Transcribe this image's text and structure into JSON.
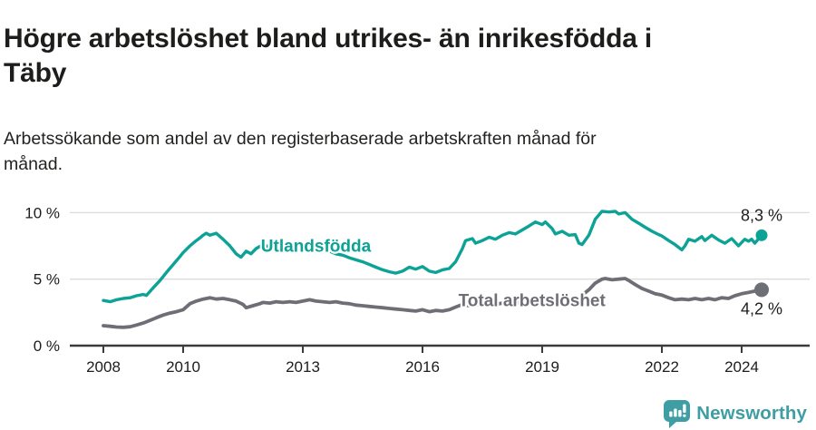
{
  "header": {
    "title_lines": [
      "Högre arbetslöshet bland utrikes- än inrikesfödda i",
      "Täby"
    ],
    "subtitle_lines": [
      "Arbetssökande som andel av den registerbaserade arbetskraften månad för",
      "månad."
    ]
  },
  "chart_data": {
    "type": "line",
    "title": "Högre arbetslöshet bland utrikes- än inrikesfödda i Täby",
    "subtitle": "Arbetssökande som andel av den registerbaserade arbetskraften månad för månad.",
    "grid": "horizontal-only",
    "legend_position": "inline-labels",
    "x_axis": {
      "ticks": [
        2008,
        2010,
        2013,
        2016,
        2019,
        2022,
        2024
      ],
      "tick_labels": [
        "2008",
        "2010",
        "2013",
        "2016",
        "2019",
        "2022",
        "2024"
      ],
      "range_years": [
        2008.0,
        2024.5
      ]
    },
    "y_axis": {
      "ticks": [
        0,
        5,
        10
      ],
      "tick_labels": [
        "0 %",
        "5 %",
        "10 %"
      ],
      "range": [
        0,
        11.7
      ],
      "unit": "%"
    },
    "series": [
      {
        "name": "Utlandsfödda",
        "color": "#0da296",
        "end_value": 8.3,
        "end_label": "8,3 %",
        "label_pos": {
          "year": 2011.95,
          "value": 7.55
        },
        "points": [
          [
            2008.0,
            3.4
          ],
          [
            2008.17,
            3.3
          ],
          [
            2008.33,
            3.45
          ],
          [
            2008.5,
            3.55
          ],
          [
            2008.67,
            3.6
          ],
          [
            2008.83,
            3.75
          ],
          [
            2009.0,
            3.85
          ],
          [
            2009.08,
            3.78
          ],
          [
            2009.25,
            4.35
          ],
          [
            2009.42,
            4.9
          ],
          [
            2009.58,
            5.5
          ],
          [
            2009.75,
            6.1
          ],
          [
            2009.92,
            6.7
          ],
          [
            2010.0,
            7.0
          ],
          [
            2010.17,
            7.5
          ],
          [
            2010.33,
            7.9
          ],
          [
            2010.42,
            8.1
          ],
          [
            2010.5,
            8.3
          ],
          [
            2010.58,
            8.45
          ],
          [
            2010.67,
            8.3
          ],
          [
            2010.83,
            8.45
          ],
          [
            2011.0,
            8.0
          ],
          [
            2011.17,
            7.5
          ],
          [
            2011.33,
            6.9
          ],
          [
            2011.45,
            6.65
          ],
          [
            2011.58,
            7.1
          ],
          [
            2011.7,
            6.9
          ],
          [
            2011.83,
            7.3
          ],
          [
            2012.0,
            7.6
          ],
          [
            2012.17,
            7.4
          ],
          [
            2012.33,
            7.6
          ],
          [
            2012.5,
            7.45
          ],
          [
            2012.67,
            7.6
          ],
          [
            2012.83,
            7.5
          ],
          [
            2013.0,
            7.55
          ],
          [
            2013.17,
            7.35
          ],
          [
            2013.33,
            7.45
          ],
          [
            2013.5,
            7.2
          ],
          [
            2013.67,
            7.1
          ],
          [
            2013.83,
            6.9
          ],
          [
            2014.0,
            6.8
          ],
          [
            2014.17,
            6.6
          ],
          [
            2014.33,
            6.45
          ],
          [
            2014.5,
            6.3
          ],
          [
            2014.67,
            6.1
          ],
          [
            2014.83,
            5.9
          ],
          [
            2015.0,
            5.7
          ],
          [
            2015.17,
            5.55
          ],
          [
            2015.33,
            5.45
          ],
          [
            2015.5,
            5.6
          ],
          [
            2015.67,
            5.9
          ],
          [
            2015.83,
            5.75
          ],
          [
            2016.0,
            5.95
          ],
          [
            2016.17,
            5.6
          ],
          [
            2016.33,
            5.5
          ],
          [
            2016.5,
            5.7
          ],
          [
            2016.67,
            5.8
          ],
          [
            2016.83,
            6.3
          ],
          [
            2017.0,
            7.3
          ],
          [
            2017.08,
            7.9
          ],
          [
            2017.25,
            8.05
          ],
          [
            2017.33,
            7.7
          ],
          [
            2017.5,
            7.9
          ],
          [
            2017.67,
            8.15
          ],
          [
            2017.83,
            8.0
          ],
          [
            2018.0,
            8.3
          ],
          [
            2018.17,
            8.5
          ],
          [
            2018.33,
            8.4
          ],
          [
            2018.5,
            8.7
          ],
          [
            2018.67,
            9.0
          ],
          [
            2018.83,
            9.3
          ],
          [
            2019.0,
            9.1
          ],
          [
            2019.08,
            9.3
          ],
          [
            2019.25,
            8.8
          ],
          [
            2019.33,
            8.4
          ],
          [
            2019.5,
            8.6
          ],
          [
            2019.67,
            8.3
          ],
          [
            2019.83,
            8.35
          ],
          [
            2019.92,
            7.7
          ],
          [
            2020.0,
            7.6
          ],
          [
            2020.17,
            8.3
          ],
          [
            2020.33,
            9.5
          ],
          [
            2020.5,
            10.1
          ],
          [
            2020.67,
            10.05
          ],
          [
            2020.83,
            10.1
          ],
          [
            2020.92,
            9.9
          ],
          [
            2021.08,
            10.0
          ],
          [
            2021.25,
            9.5
          ],
          [
            2021.42,
            9.2
          ],
          [
            2021.58,
            8.9
          ],
          [
            2021.75,
            8.6
          ],
          [
            2021.92,
            8.35
          ],
          [
            2022.0,
            8.25
          ],
          [
            2022.17,
            7.9
          ],
          [
            2022.33,
            7.6
          ],
          [
            2022.5,
            7.2
          ],
          [
            2022.58,
            7.5
          ],
          [
            2022.67,
            8.0
          ],
          [
            2022.83,
            7.85
          ],
          [
            2023.0,
            8.2
          ],
          [
            2023.08,
            7.9
          ],
          [
            2023.25,
            8.3
          ],
          [
            2023.42,
            7.95
          ],
          [
            2023.58,
            7.7
          ],
          [
            2023.75,
            8.05
          ],
          [
            2023.92,
            7.5
          ],
          [
            2024.08,
            8.0
          ],
          [
            2024.17,
            7.85
          ],
          [
            2024.25,
            8.0
          ],
          [
            2024.33,
            7.7
          ],
          [
            2024.5,
            8.3
          ]
        ]
      },
      {
        "name": "Total arbetslöshet",
        "color": "#6e6e76",
        "end_value": 4.2,
        "end_label": "4,2 %",
        "label_pos": {
          "year": 2016.9,
          "value": 3.45
        },
        "points": [
          [
            2008.0,
            1.5
          ],
          [
            2008.17,
            1.45
          ],
          [
            2008.33,
            1.4
          ],
          [
            2008.5,
            1.38
          ],
          [
            2008.67,
            1.42
          ],
          [
            2008.83,
            1.55
          ],
          [
            2009.0,
            1.7
          ],
          [
            2009.17,
            1.9
          ],
          [
            2009.33,
            2.1
          ],
          [
            2009.5,
            2.3
          ],
          [
            2009.67,
            2.45
          ],
          [
            2009.83,
            2.55
          ],
          [
            2010.0,
            2.7
          ],
          [
            2010.17,
            3.15
          ],
          [
            2010.33,
            3.35
          ],
          [
            2010.5,
            3.5
          ],
          [
            2010.67,
            3.6
          ],
          [
            2010.83,
            3.5
          ],
          [
            2011.0,
            3.55
          ],
          [
            2011.17,
            3.45
          ],
          [
            2011.33,
            3.35
          ],
          [
            2011.5,
            3.1
          ],
          [
            2011.58,
            2.85
          ],
          [
            2011.75,
            3.0
          ],
          [
            2011.92,
            3.15
          ],
          [
            2012.0,
            3.25
          ],
          [
            2012.17,
            3.2
          ],
          [
            2012.33,
            3.3
          ],
          [
            2012.5,
            3.25
          ],
          [
            2012.67,
            3.3
          ],
          [
            2012.83,
            3.25
          ],
          [
            2013.0,
            3.35
          ],
          [
            2013.17,
            3.45
          ],
          [
            2013.33,
            3.35
          ],
          [
            2013.5,
            3.3
          ],
          [
            2013.67,
            3.25
          ],
          [
            2013.83,
            3.3
          ],
          [
            2014.0,
            3.2
          ],
          [
            2014.17,
            3.15
          ],
          [
            2014.33,
            3.05
          ],
          [
            2014.5,
            3.0
          ],
          [
            2014.67,
            2.95
          ],
          [
            2014.83,
            2.9
          ],
          [
            2015.0,
            2.85
          ],
          [
            2015.17,
            2.8
          ],
          [
            2015.33,
            2.75
          ],
          [
            2015.5,
            2.7
          ],
          [
            2015.67,
            2.65
          ],
          [
            2015.83,
            2.6
          ],
          [
            2016.0,
            2.7
          ],
          [
            2016.17,
            2.55
          ],
          [
            2016.33,
            2.65
          ],
          [
            2016.5,
            2.6
          ],
          [
            2016.67,
            2.7
          ],
          [
            2016.83,
            2.9
          ],
          [
            2017.0,
            3.1
          ],
          [
            2017.17,
            3.0
          ],
          [
            2017.33,
            3.1
          ],
          [
            2017.5,
            3.05
          ],
          [
            2017.67,
            3.15
          ],
          [
            2017.83,
            3.1
          ],
          [
            2018.0,
            3.2
          ],
          [
            2018.17,
            3.15
          ],
          [
            2018.33,
            3.25
          ],
          [
            2018.5,
            3.2
          ],
          [
            2018.67,
            3.3
          ],
          [
            2018.83,
            3.25
          ],
          [
            2019.0,
            3.35
          ],
          [
            2019.17,
            3.3
          ],
          [
            2019.33,
            3.4
          ],
          [
            2019.5,
            3.45
          ],
          [
            2019.67,
            3.5
          ],
          [
            2019.83,
            3.55
          ],
          [
            2019.92,
            3.6
          ],
          [
            2020.17,
            4.2
          ],
          [
            2020.33,
            4.7
          ],
          [
            2020.5,
            5.0
          ],
          [
            2020.58,
            5.05
          ],
          [
            2020.75,
            4.95
          ],
          [
            2020.92,
            5.0
          ],
          [
            2021.08,
            5.05
          ],
          [
            2021.17,
            4.9
          ],
          [
            2021.33,
            4.6
          ],
          [
            2021.5,
            4.3
          ],
          [
            2021.67,
            4.1
          ],
          [
            2021.83,
            3.9
          ],
          [
            2022.0,
            3.8
          ],
          [
            2022.17,
            3.6
          ],
          [
            2022.33,
            3.45
          ],
          [
            2022.5,
            3.5
          ],
          [
            2022.67,
            3.45
          ],
          [
            2022.83,
            3.55
          ],
          [
            2023.0,
            3.45
          ],
          [
            2023.17,
            3.55
          ],
          [
            2023.33,
            3.45
          ],
          [
            2023.5,
            3.6
          ],
          [
            2023.67,
            3.55
          ],
          [
            2023.83,
            3.75
          ],
          [
            2024.0,
            3.9
          ],
          [
            2024.17,
            4.0
          ],
          [
            2024.33,
            4.1
          ],
          [
            2024.5,
            4.2
          ]
        ]
      }
    ],
    "colors": {
      "grid": "#dcdcdc",
      "axis": "#3a3a3a",
      "tick_text": "#1d1d1b"
    }
  },
  "footer": {
    "brand": "Newsworthy",
    "brand_color": "#3f9ea3",
    "logo_icon": "bar-chart-speech-bubble"
  }
}
